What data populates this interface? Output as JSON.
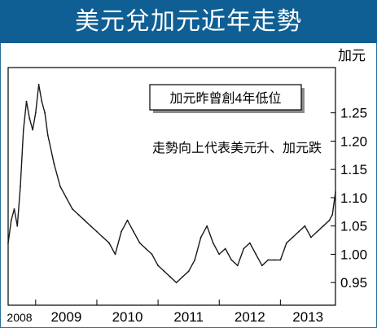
{
  "title": "美元兌加元近年走勢",
  "annotation_box": "加元昨曾創4年低位",
  "annotation_text": "走勢向上代表美元升、加元跌",
  "colors": {
    "header": "#0f5f94",
    "line": "#1a1a1a",
    "box_shadow": "#8c8c8c"
  },
  "chart_data": {
    "type": "line",
    "title": "美元兌加元近年走勢",
    "ylabel": "加元",
    "ylim": [
      0.91,
      1.33
    ],
    "y_ticks": [
      0.95,
      1.0,
      1.05,
      1.1,
      1.15,
      1.2,
      1.25
    ],
    "y_tick_labels": [
      "0.95",
      "1.00",
      "1.05",
      "1.10",
      "1.15",
      "1.20",
      "1.25"
    ],
    "x_ticks": [
      2008,
      2009,
      2010,
      2011,
      2012,
      2013
    ],
    "x_tick_labels": [
      "2008",
      "2009",
      "2010",
      "2011",
      "2012",
      "2013"
    ],
    "xlim": [
      2008.55,
      2013.9
    ],
    "grid": false,
    "series": [
      {
        "x": [
          2008.55,
          2008.6,
          2008.65,
          2008.7,
          2008.75,
          2008.8,
          2008.85,
          2008.9,
          2008.95,
          2009.0,
          2009.05,
          2009.1,
          2009.15,
          2009.2,
          2009.3,
          2009.4,
          2009.5,
          2009.6,
          2009.7,
          2009.8,
          2009.9,
          2010.0,
          2010.1,
          2010.2,
          2010.3,
          2010.4,
          2010.5,
          2010.6,
          2010.7,
          2010.8,
          2010.9,
          2011.0,
          2011.1,
          2011.2,
          2011.3,
          2011.4,
          2011.5,
          2011.6,
          2011.7,
          2011.8,
          2011.9,
          2012.0,
          2012.1,
          2012.2,
          2012.3,
          2012.4,
          2012.5,
          2012.6,
          2012.7,
          2012.8,
          2012.9,
          2013.0,
          2013.1,
          2013.2,
          2013.3,
          2013.4,
          2013.5,
          2013.6,
          2013.7,
          2013.8,
          2013.85,
          2013.9
        ],
        "values": [
          1.02,
          1.06,
          1.08,
          1.05,
          1.12,
          1.22,
          1.27,
          1.24,
          1.22,
          1.25,
          1.3,
          1.27,
          1.25,
          1.21,
          1.16,
          1.12,
          1.1,
          1.08,
          1.07,
          1.06,
          1.05,
          1.04,
          1.03,
          1.02,
          1.0,
          1.04,
          1.06,
          1.04,
          1.02,
          1.01,
          1.0,
          0.98,
          0.97,
          0.96,
          0.95,
          0.96,
          0.97,
          0.99,
          1.03,
          1.05,
          1.02,
          1.0,
          1.01,
          0.99,
          0.98,
          1.01,
          1.02,
          1.0,
          0.98,
          0.99,
          0.99,
          0.99,
          1.02,
          1.03,
          1.04,
          1.05,
          1.03,
          1.04,
          1.05,
          1.06,
          1.07,
          1.11
        ]
      }
    ]
  }
}
